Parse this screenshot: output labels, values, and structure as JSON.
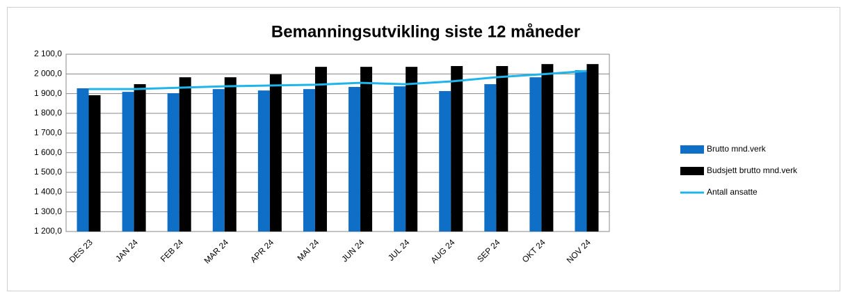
{
  "chart_data": {
    "type": "bar",
    "title": "Bemanningsutvikling siste 12 måneder",
    "categories": [
      "DES 23",
      "JAN 24",
      "FEB 24",
      "MAR 24",
      "APR 24",
      "MAI 24",
      "JUN 24",
      "JUL 24",
      "AUG 24",
      "SEP 24",
      "OKT 24",
      "NOV 24"
    ],
    "series": [
      {
        "name": "Brutto mnd.verk",
        "color": "#0f6fc6",
        "type": "bar",
        "values": [
          1927,
          1909,
          1902,
          1923,
          1916,
          1923,
          1934,
          1937,
          1913,
          1948,
          1983,
          2019
        ]
      },
      {
        "name": "Budsjett brutto mnd.verk",
        "color": "#000000",
        "type": "bar",
        "values": [
          1892,
          1948,
          1983,
          1983,
          1998,
          2036,
          2036,
          2036,
          2040,
          2040,
          2050,
          2050
        ]
      },
      {
        "name": "Antall ansatte",
        "color": "#1fb4ea",
        "type": "line",
        "values": [
          1923,
          1923,
          1930,
          1937,
          1941,
          1945,
          1955,
          1948,
          1962,
          1983,
          1998,
          2015
        ]
      }
    ],
    "ylim": [
      1200,
      2100
    ],
    "yticks": [
      {
        "value": 1200,
        "label": "1 200,0"
      },
      {
        "value": 1300,
        "label": "1 300,0"
      },
      {
        "value": 1400,
        "label": "1 400,0"
      },
      {
        "value": 1500,
        "label": "1 500,0"
      },
      {
        "value": 1600,
        "label": "1 600,0"
      },
      {
        "value": 1700,
        "label": "1 700,0"
      },
      {
        "value": 1800,
        "label": "1 800,0"
      },
      {
        "value": 1900,
        "label": "1 900,0"
      },
      {
        "value": 2000,
        "label": "2 000,0"
      },
      {
        "value": 2100,
        "label": "2 100,0"
      }
    ],
    "grid": true,
    "legend": "right"
  }
}
